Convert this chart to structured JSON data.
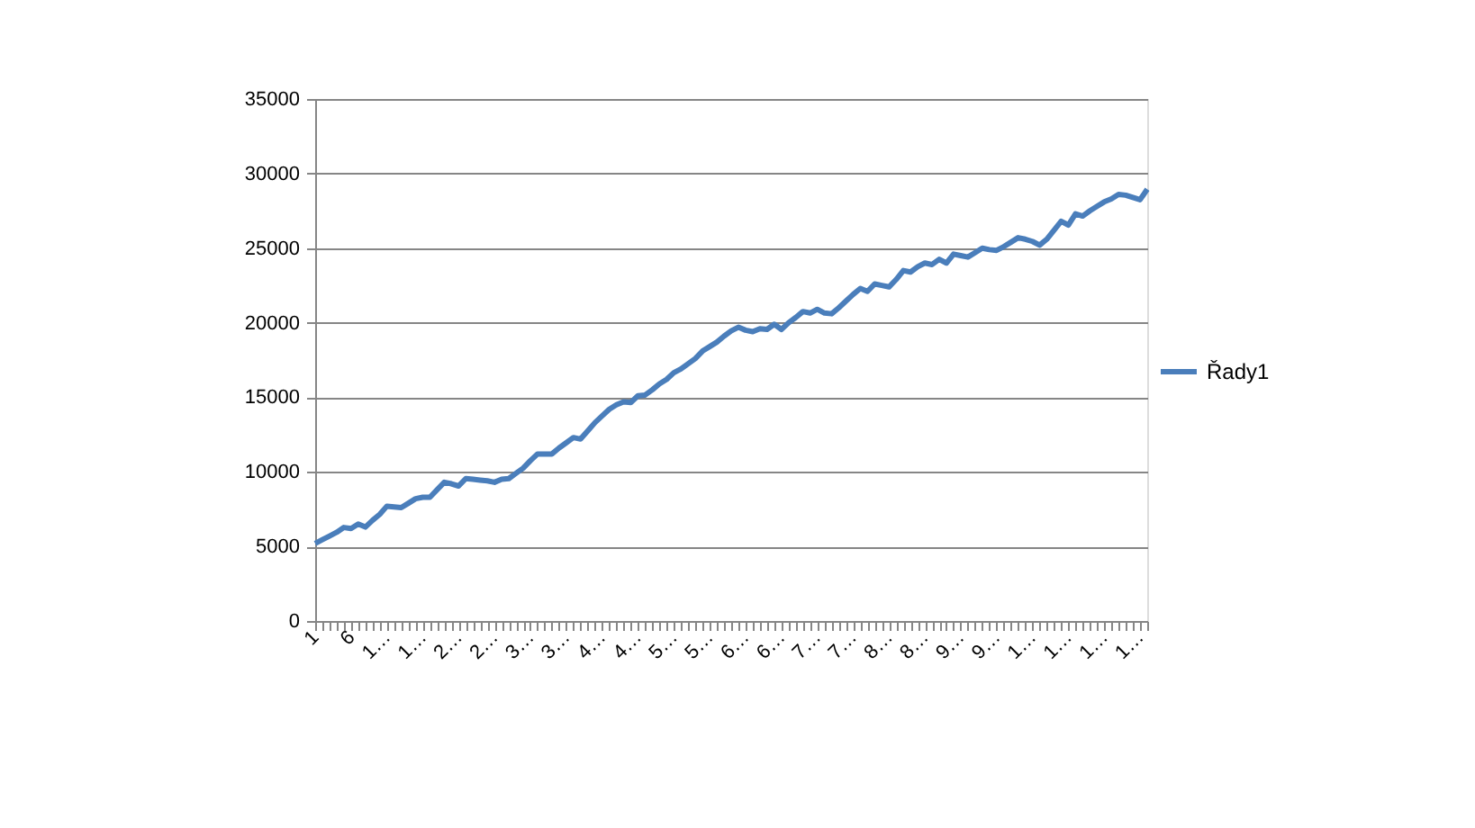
{
  "chart_data": {
    "type": "line",
    "categories": [
      "1",
      null,
      null,
      null,
      null,
      "6",
      null,
      null,
      null,
      null,
      "1…",
      null,
      null,
      null,
      null,
      "1…",
      null,
      null,
      null,
      null,
      "2…",
      null,
      null,
      null,
      null,
      "2…",
      null,
      null,
      null,
      null,
      "3…",
      null,
      null,
      null,
      null,
      "3…",
      null,
      null,
      null,
      null,
      "4…",
      null,
      null,
      null,
      null,
      "4…",
      null,
      null,
      null,
      null,
      "5…",
      null,
      null,
      null,
      null,
      "5…",
      null,
      null,
      null,
      null,
      "6…",
      null,
      null,
      null,
      null,
      "6…",
      null,
      null,
      null,
      null,
      "7…",
      null,
      null,
      null,
      null,
      "7…",
      null,
      null,
      null,
      null,
      "8…",
      null,
      null,
      null,
      null,
      "8…",
      null,
      null,
      null,
      null,
      "9…",
      null,
      null,
      null,
      null,
      "9…",
      null,
      null,
      null,
      null,
      "1…",
      null,
      null,
      null,
      null,
      "1…",
      null,
      null,
      null,
      null,
      "1…",
      null,
      null,
      null,
      null,
      "1…",
      null
    ],
    "series": [
      {
        "name": "Řady1",
        "color": "#4a7ebb",
        "values": [
          5200,
          5450,
          5700,
          5950,
          6270,
          6200,
          6500,
          6300,
          6750,
          7150,
          7700,
          7650,
          7600,
          7900,
          8200,
          8300,
          8300,
          8800,
          9300,
          9200,
          9050,
          9550,
          9500,
          9450,
          9400,
          9300,
          9500,
          9550,
          9900,
          10250,
          10750,
          11200,
          11200,
          11200,
          11600,
          11950,
          12300,
          12200,
          12750,
          13300,
          13750,
          14200,
          14500,
          14700,
          14650,
          15100,
          15150,
          15500,
          15900,
          16200,
          16650,
          16900,
          17250,
          17600,
          18100,
          18400,
          18700,
          19100,
          19450,
          19700,
          19500,
          19400,
          19600,
          19550,
          19900,
          19550,
          20000,
          20350,
          20750,
          20650,
          20900,
          20650,
          20600,
          21000,
          21450,
          21900,
          22300,
          22100,
          22600,
          22500,
          22400,
          22900,
          23500,
          23400,
          23750,
          24000,
          23900,
          24250,
          24000,
          24600,
          24500,
          24400,
          24700,
          25000,
          24900,
          24850,
          25100,
          25400,
          25700,
          25600,
          25450,
          25200,
          25600,
          26200,
          26800,
          26550,
          27300,
          27150,
          27500,
          27800,
          28100,
          28300,
          28600,
          28550,
          28400,
          28250,
          28950
        ]
      }
    ],
    "ylim": [
      0,
      35000
    ],
    "yticks": [
      0,
      5000,
      10000,
      15000,
      20000,
      25000,
      30000,
      35000
    ],
    "grid": "y",
    "legend": "right",
    "marker": "none",
    "line_style": "solid"
  }
}
